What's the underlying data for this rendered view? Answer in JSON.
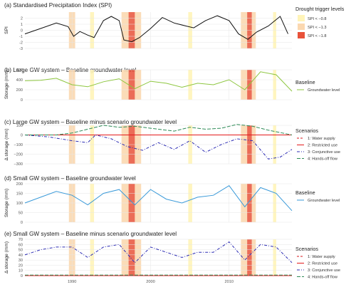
{
  "chart_data": [
    {
      "panel": "a",
      "type": "line",
      "title": "(a) Standardised Precipitation Index (SPI)",
      "ylabel": "SPI",
      "ylim": [
        -3,
        3
      ],
      "yticks": [
        "2",
        "1",
        "0",
        "-1",
        "-2",
        "-3"
      ],
      "ytick_values": [
        2,
        1,
        0,
        -1,
        -2,
        -3
      ],
      "xlim": [
        1984,
        2018
      ],
      "series": [
        {
          "color": "#111111",
          "x": [
            1984,
            1986,
            1988,
            1989.5,
            1990.2,
            1991,
            1992,
            1992.8,
            1994,
            1995,
            1996,
            1996.6,
            1997.6,
            1998.6,
            2000,
            2001.5,
            2003,
            2004.5,
            2005.5,
            2007,
            2008.5,
            2010,
            2011.2,
            2012.4,
            2013.5,
            2015,
            2016.5,
            2017.5
          ],
          "values": [
            -0.6,
            0.3,
            1.2,
            0.6,
            -1.0,
            -0.2,
            -0.8,
            -1.2,
            1.6,
            2.3,
            1.6,
            -1.6,
            -1.9,
            -1.2,
            0.3,
            2.1,
            1.2,
            0.7,
            0.4,
            1.6,
            2.4,
            1.6,
            -0.6,
            -1.5,
            -0.3,
            0.7,
            2.3,
            -0.6
          ]
        }
      ]
    },
    {
      "panel": "b",
      "type": "line",
      "title": "(b) Large GW system – Baseline groundwater level",
      "ylabel": "Storage (mm)",
      "ylim": [
        0,
        600
      ],
      "yticks": [
        "600",
        "400",
        "200",
        "0"
      ],
      "ytick_values": [
        600,
        400,
        200,
        0
      ],
      "xlim": [
        1984,
        2018
      ],
      "series": [
        {
          "name": "Groundwater level",
          "color": "#8dc63f",
          "x": [
            1984,
            1986,
            1988,
            1990,
            1992,
            1994,
            1996,
            1998,
            2000,
            2002,
            2004,
            2006,
            2008,
            2010,
            2012,
            2014,
            2016,
            2018
          ],
          "values": [
            380,
            390,
            430,
            300,
            260,
            360,
            420,
            220,
            370,
            330,
            250,
            330,
            300,
            400,
            200,
            560,
            500,
            170
          ]
        }
      ]
    },
    {
      "panel": "c",
      "type": "line",
      "title": "(c) Large GW system – Baseline minus scenario groundwater level",
      "ylabel": "Δ storage (mm)",
      "ylim": [
        -300,
        100
      ],
      "yticks": [
        "100",
        "0",
        "−100",
        "−200",
        "−300"
      ],
      "ytick_values": [
        100,
        0,
        -100,
        -200,
        -300
      ],
      "xlim": [
        1984,
        2018
      ],
      "legend_title": "Scenarios",
      "series": [
        {
          "name": "1: Water supply",
          "color": "#d7191c",
          "x": [
            1984,
            2018
          ],
          "values": [
            0,
            0
          ]
        },
        {
          "name": "2: Restricted use",
          "color": "#e31a1c",
          "x": [
            1984,
            2018
          ],
          "values": [
            0,
            0
          ]
        },
        {
          "name": "3: Conjunctive use",
          "color": "#2c2cb4",
          "x": [
            1984,
            1987,
            1990,
            1992,
            1993,
            1995,
            1997,
            1999,
            2001,
            2003,
            2005,
            2007,
            2009,
            2011,
            2013,
            2015,
            2016.5,
            2018
          ],
          "values": [
            0,
            -20,
            -60,
            -80,
            0,
            -40,
            -120,
            -160,
            -80,
            -150,
            -60,
            -180,
            -100,
            -40,
            -60,
            -250,
            -230,
            -150
          ]
        },
        {
          "name": "4: Hands-off flow",
          "color": "#2e8b57",
          "x": [
            1984,
            1988,
            1990,
            1992,
            1994,
            1996,
            1998,
            2000,
            2003,
            2005,
            2007,
            2009,
            2011,
            2013,
            2015,
            2018
          ],
          "values": [
            0,
            0,
            20,
            60,
            100,
            80,
            90,
            70,
            40,
            80,
            60,
            70,
            110,
            90,
            50,
            0
          ]
        }
      ]
    },
    {
      "panel": "d",
      "type": "line",
      "title": "(d) Small GW system – Baseline groundwater level",
      "ylabel": "Storage (mm)",
      "ylim": [
        0,
        200
      ],
      "yticks": [
        "200",
        "150",
        "100",
        "50",
        "0"
      ],
      "ytick_values": [
        200,
        150,
        100,
        50,
        0
      ],
      "xlim": [
        1984,
        2018
      ],
      "legend_title": "Baseline",
      "series": [
        {
          "name": "Groundwater level",
          "color": "#3a9ad9",
          "x": [
            1984,
            1986,
            1988,
            1990,
            1992,
            1994,
            1996,
            1998,
            2000,
            2002,
            2004,
            2006,
            2008,
            2010,
            2012,
            2014,
            2016,
            2018
          ],
          "values": [
            100,
            130,
            160,
            140,
            90,
            150,
            170,
            90,
            170,
            120,
            100,
            130,
            140,
            190,
            80,
            180,
            150,
            60
          ]
        }
      ]
    },
    {
      "panel": "e",
      "type": "line",
      "title": "(e) Small GW system – Baseline minus scenario groundwater level",
      "ylabel": "Δ storage (mm)",
      "ylim": [
        0,
        70
      ],
      "yticks": [
        "70",
        "60",
        "50",
        "40",
        "30",
        "20",
        "10",
        "0"
      ],
      "ytick_values": [
        70,
        60,
        50,
        40,
        30,
        20,
        10,
        0
      ],
      "xlim": [
        1984,
        2018
      ],
      "legend_title": "Scenarios",
      "series": [
        {
          "name": "1: Water supply",
          "color": "#d7191c",
          "x": [
            1984,
            2018
          ],
          "values": [
            0,
            0
          ]
        },
        {
          "name": "2: Restricted use",
          "color": "#e31a1c",
          "x": [
            1984,
            2018
          ],
          "values": [
            0,
            0
          ]
        },
        {
          "name": "3: Conjunctive use",
          "color": "#2c2cb4",
          "x": [
            1984,
            1986,
            1988,
            1990,
            1992,
            1994,
            1996,
            1998,
            2000,
            2002,
            2004,
            2006,
            2008,
            2010,
            2012,
            2014,
            2016,
            2018
          ],
          "values": [
            40,
            50,
            55,
            55,
            35,
            55,
            60,
            25,
            55,
            45,
            35,
            45,
            45,
            65,
            30,
            60,
            55,
            25
          ]
        },
        {
          "name": "4: Hands-off flow",
          "color": "#2e8b57",
          "x": [
            1984,
            2018
          ],
          "values": [
            1,
            1
          ]
        }
      ]
    }
  ],
  "x_axis": {
    "ticks": [
      "1990",
      "2000",
      "2010"
    ],
    "tick_values": [
      1990,
      2000,
      2010
    ]
  },
  "drought_shading": {
    "legend_title": "Drought trigger levels",
    "levels": [
      {
        "label": "SPI < −0.8",
        "color": "#fff4b8"
      },
      {
        "label": "SPI < −1.3",
        "color": "#fbd8b0"
      },
      {
        "label": "SPI < −1.8",
        "color": "#e8523a"
      }
    ],
    "periods": [
      {
        "start": 1989.6,
        "end": 1990.4,
        "level": 2
      },
      {
        "start": 1992.3,
        "end": 1992.8,
        "level": 1
      },
      {
        "start": 1996.3,
        "end": 1997.2,
        "level": 2
      },
      {
        "start": 1997.2,
        "end": 1998.0,
        "level": 3
      },
      {
        "start": 1998.0,
        "end": 1998.8,
        "level": 2
      },
      {
        "start": 2004.8,
        "end": 2005.3,
        "level": 1
      },
      {
        "start": 2011.5,
        "end": 2012.3,
        "level": 2
      },
      {
        "start": 2012.3,
        "end": 2012.9,
        "level": 3
      },
      {
        "start": 2012.9,
        "end": 2013.4,
        "level": 2
      },
      {
        "start": 2015.6,
        "end": 2016.0,
        "level": 1
      }
    ]
  },
  "legends": {
    "b": {
      "title": "Baseline",
      "items": [
        {
          "label": "Groundwater level",
          "color": "#8dc63f"
        }
      ]
    },
    "c": {
      "title": "Scenarios"
    },
    "d": {
      "title": "Baseline",
      "items": [
        {
          "label": "Groundwater level",
          "color": "#3a9ad9"
        }
      ]
    },
    "e": {
      "title": "Scenarios"
    }
  }
}
